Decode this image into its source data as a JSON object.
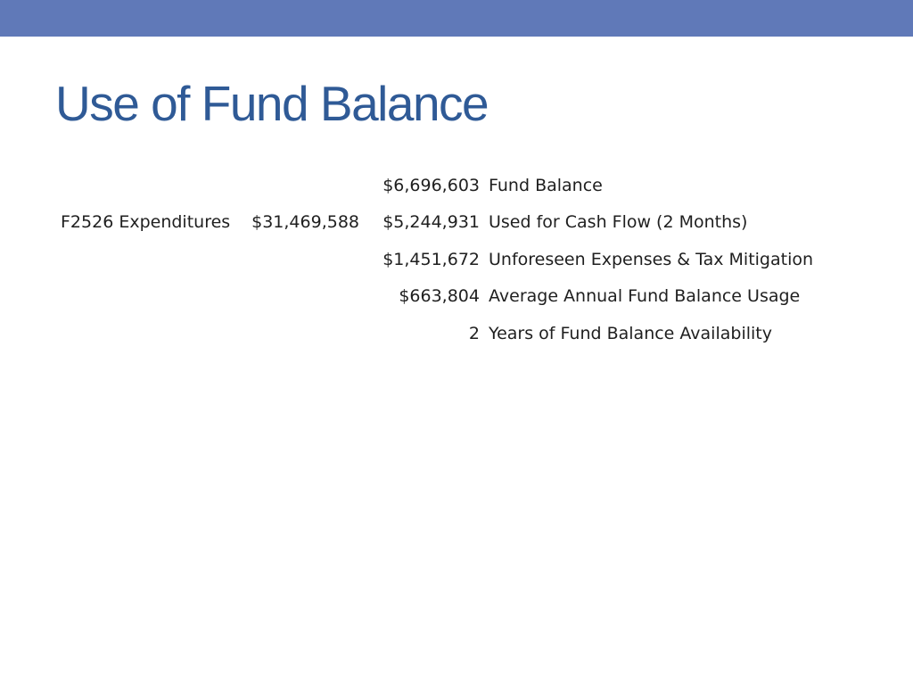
{
  "slide": {
    "title": "Use of Fund Balance",
    "accent_color": "#6079b8",
    "title_color": "#2f5a96"
  },
  "expenditures": {
    "label": "F2526 Expenditures",
    "total": "$31,469,588"
  },
  "rows": [
    {
      "amount": "$6,696,603",
      "description": "Fund Balance"
    },
    {
      "amount": "$5,244,931",
      "description": "Used for Cash Flow (2 Months)"
    },
    {
      "amount": "$1,451,672",
      "description": "Unforeseen Expenses & Tax Mitigation"
    },
    {
      "amount": "$663,804",
      "description": "Average Annual Fund Balance Usage"
    },
    {
      "amount": "2",
      "description": "Years of Fund Balance Availability"
    }
  ]
}
